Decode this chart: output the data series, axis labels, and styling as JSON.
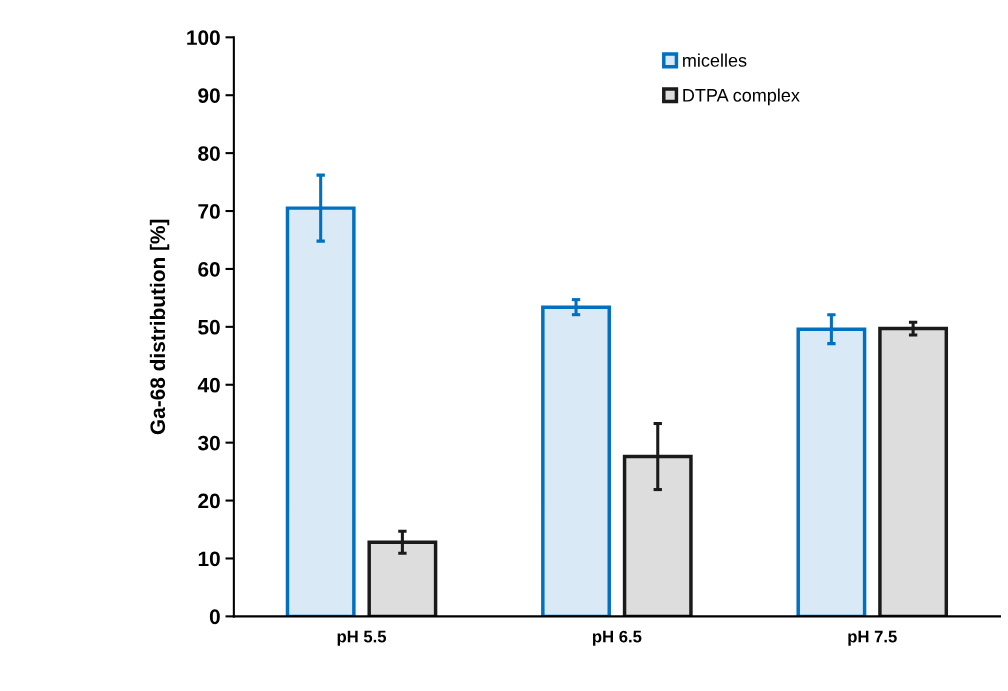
{
  "chart_data": {
    "type": "bar",
    "ylabel": "Ga-68 distribution [%]",
    "categories": [
      "pH 5.5",
      "pH 6.5",
      "pH 7.5"
    ],
    "series": [
      {
        "name": "micelles",
        "color": "#0070c0",
        "values": [
          70.5,
          53.4,
          49.6
        ],
        "errors": [
          5.7,
          1.3,
          2.5
        ]
      },
      {
        "name": "DTPA complex",
        "color": "#1a1a1a",
        "values": [
          12.8,
          27.6,
          49.7
        ],
        "errors": [
          1.9,
          5.7,
          1.1
        ]
      }
    ],
    "ylim": [
      0,
      100
    ],
    "yticks": [
      0,
      10,
      20,
      30,
      40,
      50,
      60,
      70,
      80,
      90,
      100
    ],
    "grid": false,
    "legend": "top right"
  }
}
